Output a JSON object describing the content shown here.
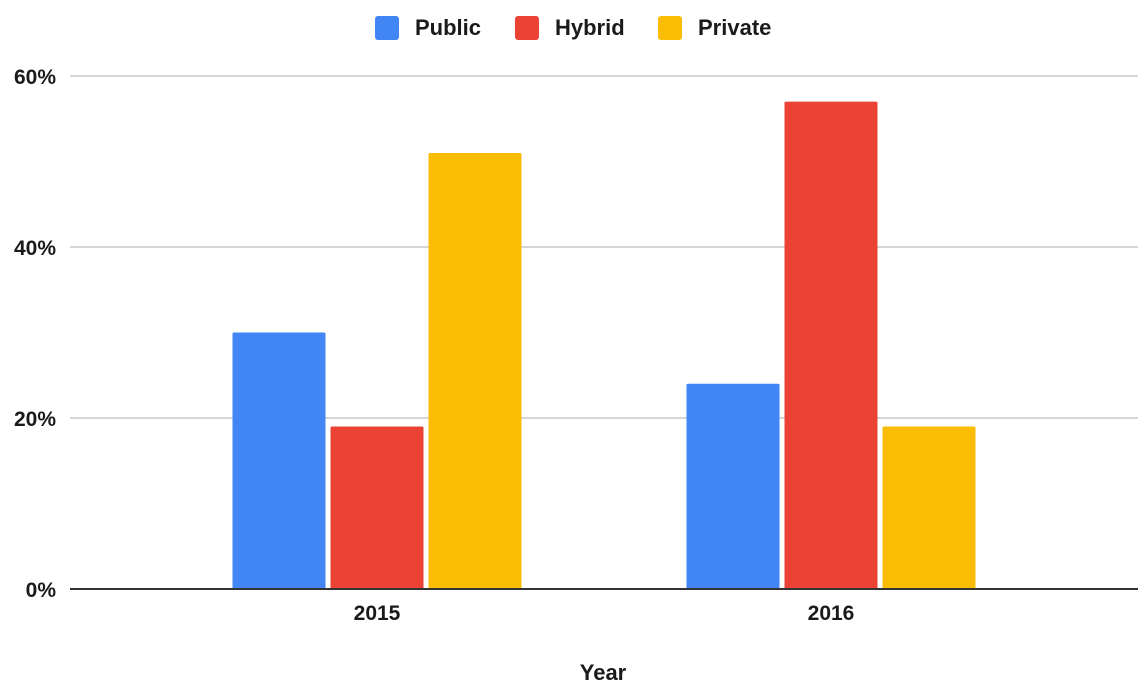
{
  "chart_data": {
    "type": "bar",
    "title": "",
    "xlabel": "Year",
    "ylabel": "",
    "categories": [
      "2015",
      "2016"
    ],
    "series": [
      {
        "name": "Public",
        "color": "#4285F4",
        "values": [
          30,
          24
        ]
      },
      {
        "name": "Hybrid",
        "color": "#EA4335",
        "values": [
          19,
          57
        ]
      },
      {
        "name": "Private",
        "color": "#FBBC04",
        "values": [
          51,
          19
        ]
      }
    ],
    "ylim": [
      0,
      60
    ],
    "y_ticks": [
      0,
      20,
      40,
      60
    ],
    "y_tick_labels": [
      "0%",
      "20%",
      "40%",
      "60%"
    ],
    "grid": true,
    "legend_position": "top-center"
  }
}
